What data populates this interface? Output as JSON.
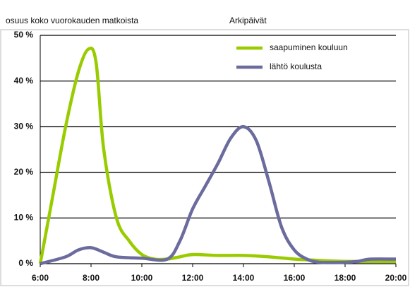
{
  "chart_data": {
    "type": "line",
    "title": "Arkipäivät",
    "ylabel": "osuus koko vuorokauden matkoista",
    "xlim": [
      6,
      20
    ],
    "xticks": [
      {
        "value": 6,
        "label": "6:00"
      },
      {
        "value": 8,
        "label": "8:00"
      },
      {
        "value": 10,
        "label": "10:00"
      },
      {
        "value": 12,
        "label": "12:00"
      },
      {
        "value": 14,
        "label": "14:00"
      },
      {
        "value": 16,
        "label": "16:00"
      },
      {
        "value": 18,
        "label": "18:00"
      },
      {
        "value": 20,
        "label": "20:00"
      }
    ],
    "ylim": [
      0,
      50
    ],
    "yticks": [
      {
        "value": 0,
        "label": "0 %"
      },
      {
        "value": 10,
        "label": "10 %"
      },
      {
        "value": 20,
        "label": "20 %"
      },
      {
        "value": 30,
        "label": "30 %"
      },
      {
        "value": 40,
        "label": "40 %"
      },
      {
        "value": 50,
        "label": "50 %"
      }
    ],
    "grid": true,
    "legend": "upper right",
    "series": [
      {
        "name": "saapuminen kouluun",
        "color": "#99cc00",
        "x": [
          6,
          6.5,
          7,
          7.5,
          7.9,
          8.2,
          8.5,
          9,
          9.5,
          10,
          10.5,
          11,
          11.5,
          12,
          13,
          14,
          15,
          16,
          17,
          18,
          19,
          20
        ],
        "values": [
          0,
          15,
          30,
          42,
          47,
          44,
          25,
          10,
          5,
          2,
          1,
          1,
          1.5,
          2,
          1.8,
          1.8,
          1.5,
          1,
          0.7,
          0.5,
          0.5,
          0.5
        ]
      },
      {
        "name": "lähtö koulusta",
        "color": "#6b6b9e",
        "x": [
          6,
          7,
          7.5,
          8,
          8.5,
          9,
          10,
          11,
          11.5,
          12,
          12.5,
          13,
          13.5,
          14,
          14.5,
          15,
          15.5,
          16,
          16.5,
          17,
          18,
          18.5,
          19,
          20
        ],
        "values": [
          0,
          1.5,
          3,
          3.5,
          2.5,
          1.5,
          1.2,
          1,
          5,
          12,
          17,
          22,
          27.5,
          30,
          27,
          18,
          8,
          3,
          1,
          0.3,
          0.3,
          0.5,
          1,
          1
        ]
      }
    ]
  }
}
